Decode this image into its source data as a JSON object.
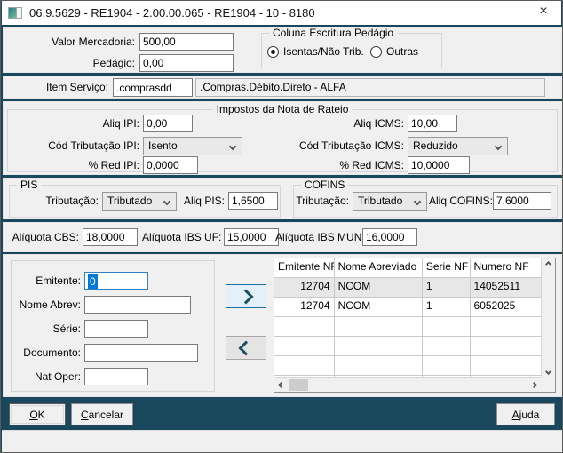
{
  "window": {
    "title": "06.9.5629 - RE1904 - 2.00.00.065 - RE1904 - 10 - 8180",
    "close_glyph": "×"
  },
  "colors": {
    "frame_teal": "#19475c",
    "focus_blue": "#0078d7",
    "panel_gray": "#f0f0f0"
  },
  "top": {
    "valor_mercadoria_label": "Valor Mercadoria:",
    "valor_mercadoria_value": "500,00",
    "pedagio_label": "Pedágio:",
    "pedagio_value": "0,00",
    "coluna_group": {
      "title": "Coluna Escritura Pedágio",
      "options": [
        {
          "label": "Isentas/Não Trib.",
          "selected": true
        },
        {
          "label": "Outras",
          "selected": false
        }
      ]
    }
  },
  "item_servico": {
    "label": "Item Serviço:",
    "value": ".comprasdd",
    "description": ".Compras.Débito.Direto - ALFA"
  },
  "impostos": {
    "title": "Impostos da Nota de Rateio",
    "aliq_ipi_label": "Aliq IPI:",
    "aliq_ipi_value": "0,00",
    "cod_trib_ipi_label": "Cód Tributação IPI:",
    "cod_trib_ipi_value": "Isento",
    "red_ipi_label": "% Red IPI:",
    "red_ipi_value": "0,0000",
    "aliq_icms_label": "Aliq ICMS:",
    "aliq_icms_value": "10,00",
    "cod_trib_icms_label": "Cód Tributação ICMS:",
    "cod_trib_icms_value": "Reduzido",
    "red_icms_label": "% Red ICMS:",
    "red_icms_value": "10,0000"
  },
  "pis": {
    "title": "PIS",
    "tributacao_label": "Tributação:",
    "tributacao_value": "Tributado",
    "aliq_label": "Aliq PIS:",
    "aliq_value": "1,6500"
  },
  "cofins": {
    "title": "COFINS",
    "tributacao_label": "Tributação:",
    "tributacao_value": "Tributado",
    "aliq_label": "Aliq COFINS:",
    "aliq_value": "7,6000"
  },
  "aliquotas": {
    "cbs_label": "Alíquota CBS:",
    "cbs_value": "18,0000",
    "ibs_uf_label": "Alíquota IBS UF:",
    "ibs_uf_value": "15,0000",
    "ibs_mun_label": "Alíquota IBS MUN:",
    "ibs_mun_value": "16,0000"
  },
  "selecao": {
    "emitente_label": "Emitente:",
    "emitente_value": "0",
    "nome_abrev_label": "Nome Abrev:",
    "nome_abrev_value": "",
    "serie_label": "Série:",
    "serie_value": "",
    "documento_label": "Documento:",
    "documento_value": "",
    "nat_oper_label": "Nat Oper:",
    "nat_oper_value": ""
  },
  "grid": {
    "columns": [
      "Emitente NF",
      "Nome Abreviado",
      "Serie NF",
      "Numero NF"
    ],
    "rows": [
      {
        "emitente": "12704",
        "nome": "NCOM",
        "serie": "1",
        "numero": "14052511",
        "selected": true
      },
      {
        "emitente": "12704",
        "nome": "NCOM",
        "serie": "1",
        "numero": "6052025",
        "selected": false
      }
    ],
    "empty_rows_visible": 4
  },
  "footer": {
    "ok": "OK",
    "cancel": "Cancelar",
    "help": "Ajuda"
  }
}
